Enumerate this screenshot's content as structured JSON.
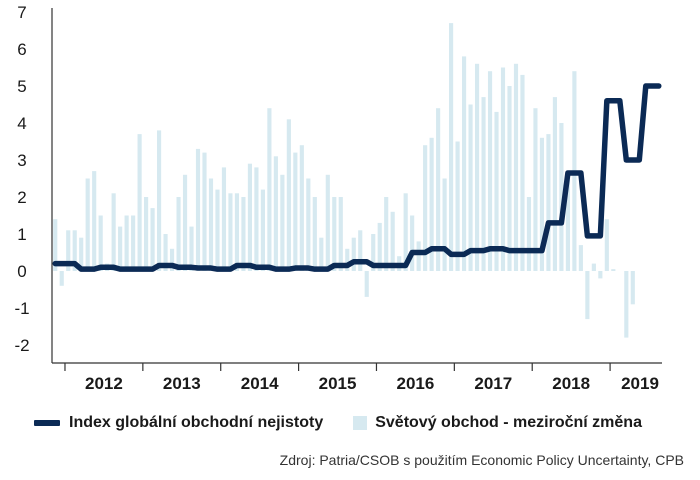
{
  "chart_data": {
    "type": "bar+line",
    "ylim": [
      -2,
      7
    ],
    "yticks": [
      7,
      6,
      5,
      4,
      3,
      2,
      1,
      0,
      -1,
      -2
    ],
    "x_year_labels": [
      "2012",
      "2013",
      "2014",
      "2015",
      "2016",
      "2017",
      "2018",
      "2019"
    ],
    "x_start": "2011-11",
    "series": [
      {
        "name": "Index globální obchodní nejistoty",
        "kind": "line",
        "color": "#0b2a55",
        "values": [
          0.2,
          0.2,
          0.2,
          0.2,
          0.05,
          0.05,
          0.05,
          0.1,
          0.1,
          0.1,
          0.05,
          0.05,
          0.05,
          0.05,
          0.05,
          0.05,
          0.15,
          0.15,
          0.15,
          0.1,
          0.1,
          0.1,
          0.08,
          0.08,
          0.08,
          0.05,
          0.05,
          0.05,
          0.15,
          0.15,
          0.15,
          0.1,
          0.1,
          0.1,
          0.05,
          0.05,
          0.05,
          0.08,
          0.08,
          0.08,
          0.05,
          0.05,
          0.05,
          0.15,
          0.15,
          0.15,
          0.25,
          0.25,
          0.25,
          0.15,
          0.15,
          0.15,
          0.15,
          0.15,
          0.15,
          0.5,
          0.5,
          0.5,
          0.6,
          0.6,
          0.6,
          0.45,
          0.45,
          0.45,
          0.55,
          0.55,
          0.55,
          0.6,
          0.6,
          0.6,
          0.55,
          0.55,
          0.55,
          0.55,
          0.55,
          0.55,
          1.3,
          1.3,
          1.3,
          2.65,
          2.65,
          2.65,
          0.95,
          0.95,
          0.95,
          4.6,
          4.6,
          4.6,
          3.0,
          3.0,
          3.0,
          5.0,
          5.0,
          5.0
        ]
      },
      {
        "name": "Světový obchod - meziroční změna",
        "kind": "bar",
        "color": "#d6e9f0",
        "values": [
          1.4,
          -0.4,
          1.1,
          1.1,
          0.9,
          2.5,
          2.7,
          1.5,
          0.2,
          2.1,
          1.2,
          1.5,
          1.5,
          3.7,
          2.0,
          1.7,
          3.8,
          1.0,
          0.6,
          2.0,
          2.6,
          1.2,
          3.3,
          3.2,
          2.5,
          2.2,
          2.8,
          2.1,
          2.1,
          2.0,
          2.9,
          2.8,
          2.2,
          4.4,
          3.1,
          2.6,
          4.1,
          3.2,
          3.4,
          2.5,
          2.0,
          0.9,
          2.6,
          2.0,
          2.0,
          0.6,
          0.9,
          1.1,
          -0.7,
          1.0,
          1.3,
          2.0,
          1.6,
          0.4,
          2.1,
          1.5,
          0.8,
          3.4,
          3.6,
          4.4,
          2.5,
          6.7,
          3.5,
          5.8,
          4.5,
          5.6,
          4.7,
          5.4,
          4.3,
          5.5,
          5.0,
          5.6,
          5.3,
          2.0,
          4.4,
          3.6,
          3.7,
          4.7,
          4.0,
          2.7,
          5.4,
          0.7,
          -1.3,
          0.2,
          -0.2,
          1.4,
          0.05,
          0.0,
          -1.8,
          -0.9,
          0.0,
          0.0,
          0.0,
          0.0
        ]
      }
    ],
    "grid": false,
    "legend_position": "bottom-left"
  },
  "legend": {
    "line_label": "Index globální obchodní nejistoty",
    "bar_label": "Světový obchod - meziroční změna"
  },
  "source": "Zdroj: Patria/CSOB s použitím Economic Policy Uncertainty, CPB"
}
